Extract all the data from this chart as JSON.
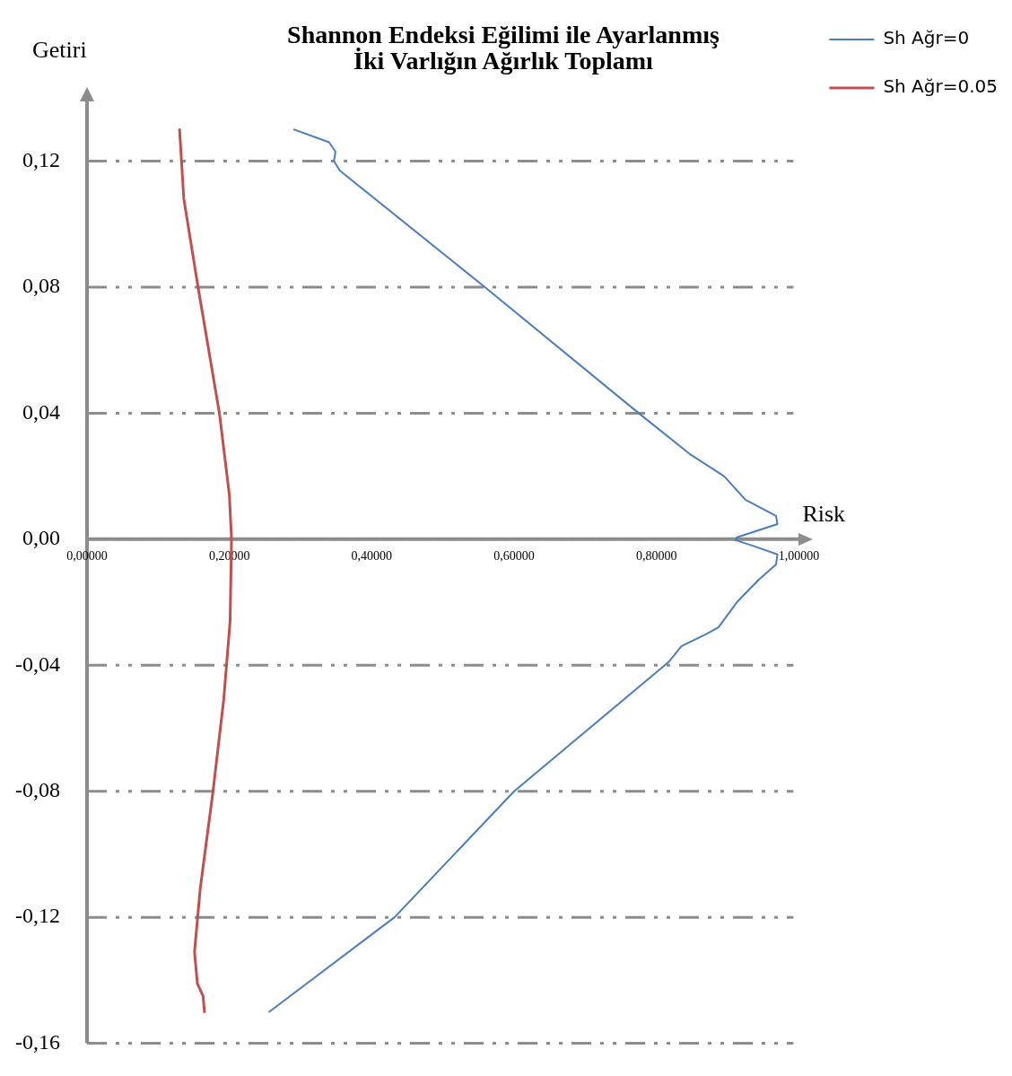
{
  "chart_data": {
    "type": "line",
    "title": [
      "Shannon Endeksi Eğilimi ile Ayarlanmış",
      "İki Varlığın Ağırlık Toplamı"
    ],
    "xlabel": "Risk",
    "ylabel": "Getiri",
    "xlim": [
      0,
      1.0
    ],
    "xticks": [
      {
        "value": 0,
        "label": "0,00000"
      },
      {
        "value": 0.2,
        "label": "0,20000"
      },
      {
        "value": 0.4,
        "label": "0,40000"
      },
      {
        "value": 0.6,
        "label": "0,60000"
      },
      {
        "value": 0.8,
        "label": "0,80000"
      },
      {
        "value": 1.0,
        "label": "1,00000"
      }
    ],
    "ylim": [
      -0.16,
      0.139
    ],
    "yticks": [
      {
        "value": -0.16,
        "label": "-0,16"
      },
      {
        "value": -0.12,
        "label": "-0,12"
      },
      {
        "value": -0.08,
        "label": "-0,08"
      },
      {
        "value": -0.04,
        "label": "-0,04"
      },
      {
        "value": 0,
        "label": "0,00"
      },
      {
        "value": 0.04,
        "label": "0,04"
      },
      {
        "value": 0.08,
        "label": "0,08"
      },
      {
        "value": 0.12,
        "label": "0,12"
      }
    ],
    "grid": "y",
    "legend": "right",
    "marker": "none",
    "line_style": "solid",
    "series": [
      {
        "name": "Sh Ağr=0",
        "color": "#4a7ebb",
        "x": [
          0.291,
          0.34,
          0.349,
          0.347,
          0.355,
          0.559,
          0.775,
          0.847,
          0.895,
          0.925,
          0.968,
          0.97,
          0.913,
          0.911,
          0.938,
          0.97,
          0.968,
          0.943,
          0.913,
          0.887,
          0.871,
          0.835,
          0.817,
          0.6,
          0.432,
          0.256
        ],
        "values": [
          0.13,
          0.126,
          0.123,
          0.12,
          0.117,
          0.08,
          0.04,
          0.027,
          0.02,
          0.0125,
          0.0074,
          0.0048,
          0.0006,
          -0.0003,
          -0.0023,
          -0.0048,
          -0.008,
          -0.013,
          -0.02,
          -0.028,
          -0.03,
          -0.034,
          -0.039,
          -0.08,
          -0.12,
          -0.15
        ]
      },
      {
        "name": "Sh Ağr=0.05",
        "color": "#c0504d",
        "x": [
          0.13,
          0.136,
          0.156,
          0.186,
          0.2,
          0.203,
          0.201,
          0.192,
          0.177,
          0.159,
          0.151,
          0.155,
          0.163,
          0.165
        ],
        "values": [
          0.13,
          0.108,
          0.08,
          0.04,
          0.014,
          0,
          -0.026,
          -0.051,
          -0.08,
          -0.111,
          -0.131,
          -0.141,
          -0.145,
          -0.15
        ]
      }
    ]
  }
}
